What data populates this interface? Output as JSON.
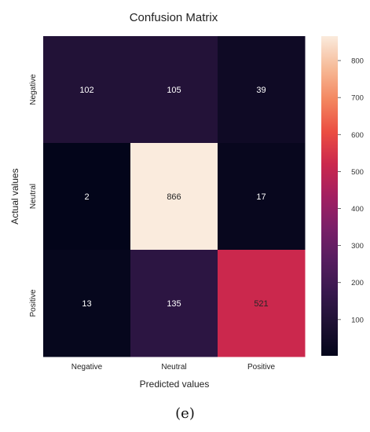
{
  "chart_data": {
    "type": "heatmap",
    "title": "Confusion Matrix",
    "xlabel": "Predicted values",
    "ylabel": "Actual values",
    "x_categories": [
      "Negative",
      "Neutral",
      "Positive"
    ],
    "y_categories": [
      "Negative",
      "Neutral",
      "Positive"
    ],
    "values": [
      [
        102,
        105,
        39
      ],
      [
        2,
        866,
        17
      ],
      [
        13,
        135,
        521
      ]
    ],
    "colorbar": {
      "range": [
        2,
        866
      ],
      "ticks": [
        100,
        200,
        300,
        400,
        500,
        600,
        700,
        800
      ],
      "colormap": "rocket"
    },
    "grid": false
  },
  "caption": {
    "label": "(e)"
  }
}
